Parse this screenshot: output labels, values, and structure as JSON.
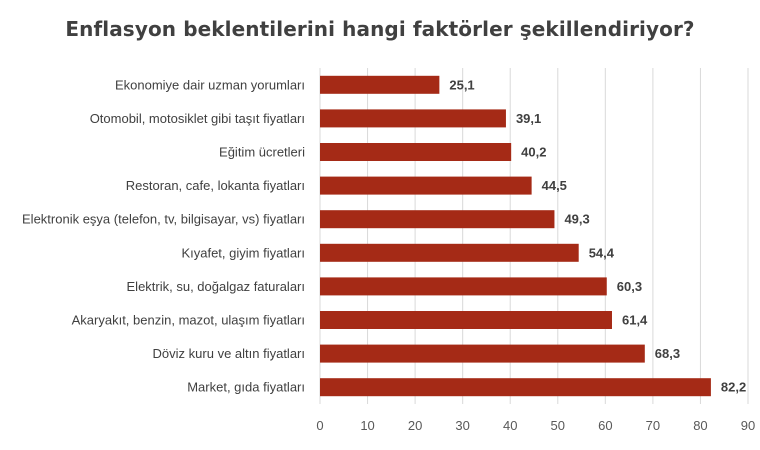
{
  "chart_data": {
    "type": "bar",
    "orientation": "horizontal",
    "title": "Enflasyon beklentilerini hangi faktörler şekillendiriyor?",
    "categories": [
      "Ekonomiye dair uzman yorumları",
      "Otomobil, motosiklet gibi taşıt fiyatları",
      "Eğitim ücretleri",
      "Restoran, cafe, lokanta fiyatları",
      "Elektronik eşya (telefon, tv, bilgisayar, vs) fiyatları",
      "Kıyafet, giyim fiyatları",
      "Elektrik, su, doğalgaz faturaları",
      "Akaryakıt, benzin, mazot, ulaşım fiyatları",
      "Döviz kuru ve altın fiyatları",
      "Market, gıda fiyatları"
    ],
    "values": [
      25.1,
      39.1,
      40.2,
      44.5,
      49.3,
      54.4,
      60.3,
      61.4,
      68.3,
      82.2
    ],
    "value_labels": [
      "25,1",
      "39,1",
      "40,2",
      "44,5",
      "49,3",
      "54,4",
      "60,3",
      "61,4",
      "68,3",
      "82,2"
    ],
    "xlim": [
      0,
      90
    ],
    "xticks": [
      "0",
      "10",
      "20",
      "30",
      "40",
      "50",
      "60",
      "70",
      "80",
      "90"
    ],
    "grid": true,
    "bar_color": "#A52A16",
    "grid_color": "#D9D9D9"
  }
}
